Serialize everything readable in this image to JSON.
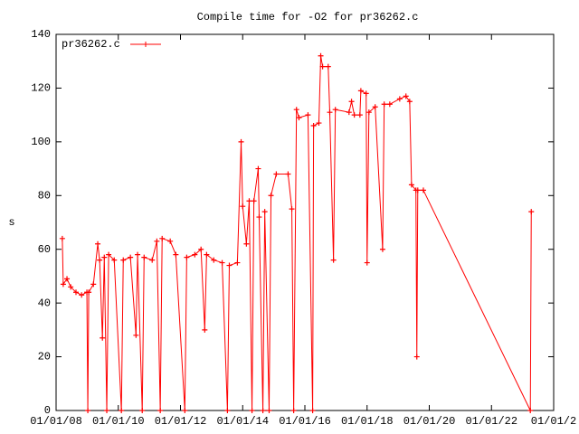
{
  "chart_data": {
    "type": "line",
    "title": "Compile time for -O2 for pr36262.c",
    "ylabel": "s",
    "x": [
      2008.2,
      2008.23,
      2008.35,
      2008.47,
      2008.64,
      2008.82,
      2008.99,
      2009.02,
      2009.05,
      2009.2,
      2009.34,
      2009.4,
      2009.49,
      2009.55,
      2009.63,
      2009.69,
      2009.87,
      2010.1,
      2010.16,
      2010.39,
      2010.57,
      2010.62,
      2010.77,
      2010.83,
      2011.09,
      2011.24,
      2011.35,
      2011.41,
      2011.67,
      2011.85,
      2012.14,
      2012.2,
      2012.46,
      2012.66,
      2012.78,
      2012.84,
      2013.07,
      2013.34,
      2013.51,
      2013.57,
      2013.83,
      2013.95,
      2014.0,
      2014.12,
      2014.21,
      2014.3,
      2014.36,
      2014.5,
      2014.53,
      2014.65,
      2014.71,
      2014.85,
      2014.91,
      2015.08,
      2015.46,
      2015.58,
      2015.64,
      2015.73,
      2015.81,
      2016.1,
      2016.25,
      2016.28,
      2016.45,
      2016.51,
      2016.57,
      2016.75,
      2016.8,
      2016.92,
      2016.98,
      2017.42,
      2017.5,
      2017.59,
      2017.77,
      2017.8,
      2017.97,
      2018.0,
      2018.06,
      2018.26,
      2018.5,
      2018.55,
      2018.73,
      2019.05,
      2019.25,
      2019.37,
      2019.43,
      2019.57,
      2019.6,
      2019.63,
      2019.81,
      2023.25,
      2023.28
    ],
    "series": [
      {
        "name": "pr36262.c",
        "color": "#ff0000",
        "values": [
          64,
          47,
          49,
          46,
          44,
          43,
          44,
          0,
          44,
          47,
          62,
          56,
          27,
          57,
          0,
          58,
          56,
          0,
          56,
          57,
          28,
          58,
          0,
          57,
          56,
          63,
          0,
          64,
          63,
          58,
          0,
          57,
          58,
          60,
          30,
          58,
          56,
          55,
          0,
          54,
          55,
          100,
          76,
          62,
          78,
          0,
          78,
          90,
          72,
          0,
          74,
          0,
          80,
          88,
          88,
          75,
          0,
          112,
          109,
          110,
          0,
          106,
          107,
          132,
          128,
          128,
          111,
          56,
          112,
          111,
          115,
          110,
          110,
          119,
          118,
          55,
          111,
          113,
          60,
          114,
          114,
          116,
          117,
          115,
          84,
          82,
          20,
          82,
          82,
          0,
          74
        ]
      }
    ],
    "xlim": [
      2008,
      2024
    ],
    "xticks": [
      {
        "value": 2008,
        "label": "01/01/08"
      },
      {
        "value": 2010,
        "label": "01/01/10"
      },
      {
        "value": 2012,
        "label": "01/01/12"
      },
      {
        "value": 2014,
        "label": "01/01/14"
      },
      {
        "value": 2016,
        "label": "01/01/16"
      },
      {
        "value": 2018,
        "label": "01/01/18"
      },
      {
        "value": 2020,
        "label": "01/01/20"
      },
      {
        "value": 2022,
        "label": "01/01/22"
      },
      {
        "value": 2024,
        "label": "01/01/2"
      }
    ],
    "ylim": [
      0,
      140
    ],
    "yticks": [
      0,
      20,
      40,
      60,
      80,
      100,
      120,
      140
    ],
    "grid": false,
    "legend": "top-left"
  }
}
